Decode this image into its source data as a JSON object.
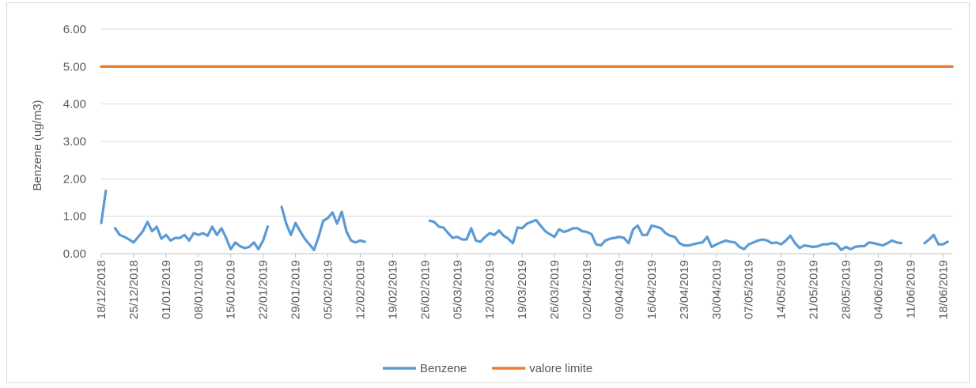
{
  "chart_data": {
    "type": "line",
    "ylabel": "Benzene (ug/m3)",
    "ylim": [
      0,
      6
    ],
    "yticks": [
      "0.00",
      "1.00",
      "2.00",
      "3.00",
      "4.00",
      "5.00",
      "6.00"
    ],
    "grid": "horizontal",
    "legend_position": "bottom",
    "x_start": "18/12/2018",
    "x_end": "20/06/2019",
    "xticks": [
      "18/12/2018",
      "25/12/2018",
      "01/01/2019",
      "08/01/2019",
      "15/01/2019",
      "22/01/2019",
      "29/01/2019",
      "05/02/2019",
      "12/02/2019",
      "19/02/2019",
      "26/02/2019",
      "05/03/2019",
      "12/03/2019",
      "19/03/2019",
      "26/03/2019",
      "02/04/2019",
      "09/04/2019",
      "16/04/2019",
      "23/04/2019",
      "30/04/2019",
      "07/05/2019",
      "14/05/2019",
      "21/05/2019",
      "28/05/2019",
      "04/06/2019",
      "11/06/2019",
      "18/06/2019"
    ],
    "series": [
      {
        "name": "Benzene",
        "color": "#5b9bd5",
        "segments": [
          [
            [
              "18/12/2018",
              0.82
            ],
            [
              "19/12/2018",
              1.68
            ]
          ],
          [
            [
              "21/12/2018",
              0.68
            ],
            [
              "22/12/2018",
              0.5
            ],
            [
              "23/12/2018",
              0.45
            ],
            [
              "24/12/2018",
              0.38
            ],
            [
              "25/12/2018",
              0.3
            ],
            [
              "26/12/2018",
              0.45
            ],
            [
              "27/12/2018",
              0.6
            ],
            [
              "28/12/2018",
              0.85
            ],
            [
              "29/12/2018",
              0.6
            ],
            [
              "30/12/2018",
              0.72
            ],
            [
              "31/12/2018",
              0.4
            ],
            [
              "01/01/2019",
              0.5
            ],
            [
              "02/01/2019",
              0.35
            ],
            [
              "03/01/2019",
              0.42
            ],
            [
              "04/01/2019",
              0.42
            ],
            [
              "05/01/2019",
              0.5
            ],
            [
              "06/01/2019",
              0.35
            ],
            [
              "07/01/2019",
              0.55
            ],
            [
              "08/01/2019",
              0.5
            ],
            [
              "09/01/2019",
              0.55
            ],
            [
              "10/01/2019",
              0.48
            ],
            [
              "11/01/2019",
              0.72
            ],
            [
              "12/01/2019",
              0.5
            ],
            [
              "13/01/2019",
              0.68
            ],
            [
              "14/01/2019",
              0.42
            ],
            [
              "15/01/2019",
              0.12
            ],
            [
              "16/01/2019",
              0.3
            ],
            [
              "17/01/2019",
              0.2
            ],
            [
              "18/01/2019",
              0.15
            ],
            [
              "19/01/2019",
              0.18
            ],
            [
              "20/01/2019",
              0.3
            ],
            [
              "21/01/2019",
              0.12
            ],
            [
              "22/01/2019",
              0.35
            ],
            [
              "23/01/2019",
              0.72
            ]
          ],
          [
            [
              "26/01/2019",
              1.25
            ],
            [
              "27/01/2019",
              0.8
            ],
            [
              "28/01/2019",
              0.5
            ],
            [
              "29/01/2019",
              0.82
            ],
            [
              "30/01/2019",
              0.6
            ],
            [
              "31/01/2019",
              0.4
            ],
            [
              "01/02/2019",
              0.25
            ],
            [
              "02/02/2019",
              0.1
            ],
            [
              "03/02/2019",
              0.45
            ],
            [
              "04/02/2019",
              0.88
            ],
            [
              "05/02/2019",
              0.95
            ],
            [
              "06/02/2019",
              1.1
            ],
            [
              "07/02/2019",
              0.8
            ],
            [
              "08/02/2019",
              1.12
            ],
            [
              "09/02/2019",
              0.6
            ],
            [
              "10/02/2019",
              0.35
            ],
            [
              "11/02/2019",
              0.3
            ],
            [
              "12/02/2019",
              0.35
            ],
            [
              "13/02/2019",
              0.32
            ]
          ],
          [
            [
              "27/02/2019",
              0.88
            ],
            [
              "28/02/2019",
              0.85
            ],
            [
              "01/03/2019",
              0.72
            ],
            [
              "02/03/2019",
              0.7
            ],
            [
              "03/03/2019",
              0.55
            ],
            [
              "04/03/2019",
              0.42
            ],
            [
              "05/03/2019",
              0.45
            ],
            [
              "06/03/2019",
              0.38
            ],
            [
              "07/03/2019",
              0.38
            ],
            [
              "08/03/2019",
              0.68
            ],
            [
              "09/03/2019",
              0.35
            ],
            [
              "10/03/2019",
              0.32
            ],
            [
              "11/03/2019",
              0.45
            ],
            [
              "12/03/2019",
              0.55
            ],
            [
              "13/03/2019",
              0.5
            ],
            [
              "14/03/2019",
              0.62
            ],
            [
              "15/03/2019",
              0.48
            ],
            [
              "16/03/2019",
              0.4
            ],
            [
              "17/03/2019",
              0.28
            ],
            [
              "18/03/2019",
              0.7
            ],
            [
              "19/03/2019",
              0.68
            ],
            [
              "20/03/2019",
              0.8
            ],
            [
              "21/03/2019",
              0.85
            ],
            [
              "22/03/2019",
              0.9
            ],
            [
              "23/03/2019",
              0.75
            ],
            [
              "24/03/2019",
              0.6
            ],
            [
              "25/03/2019",
              0.52
            ],
            [
              "26/03/2019",
              0.45
            ],
            [
              "27/03/2019",
              0.65
            ],
            [
              "28/03/2019",
              0.58
            ],
            [
              "29/03/2019",
              0.62
            ],
            [
              "30/03/2019",
              0.68
            ],
            [
              "31/03/2019",
              0.68
            ],
            [
              "01/04/2019",
              0.6
            ],
            [
              "02/04/2019",
              0.58
            ],
            [
              "03/04/2019",
              0.52
            ],
            [
              "04/04/2019",
              0.25
            ],
            [
              "05/04/2019",
              0.22
            ],
            [
              "06/04/2019",
              0.35
            ],
            [
              "07/04/2019",
              0.4
            ],
            [
              "08/04/2019",
              0.42
            ],
            [
              "09/04/2019",
              0.45
            ],
            [
              "10/04/2019",
              0.42
            ],
            [
              "11/04/2019",
              0.28
            ],
            [
              "12/04/2019",
              0.65
            ],
            [
              "13/04/2019",
              0.75
            ],
            [
              "14/04/2019",
              0.5
            ],
            [
              "15/04/2019",
              0.5
            ],
            [
              "16/04/2019",
              0.75
            ],
            [
              "17/04/2019",
              0.72
            ],
            [
              "18/04/2019",
              0.68
            ],
            [
              "19/04/2019",
              0.55
            ],
            [
              "20/04/2019",
              0.48
            ],
            [
              "21/04/2019",
              0.45
            ],
            [
              "22/04/2019",
              0.28
            ],
            [
              "23/04/2019",
              0.22
            ],
            [
              "24/04/2019",
              0.22
            ],
            [
              "25/04/2019",
              0.25
            ],
            [
              "26/04/2019",
              0.28
            ],
            [
              "27/04/2019",
              0.3
            ],
            [
              "28/04/2019",
              0.45
            ],
            [
              "29/04/2019",
              0.18
            ],
            [
              "30/04/2019",
              0.25
            ],
            [
              "01/05/2019",
              0.3
            ],
            [
              "02/05/2019",
              0.35
            ],
            [
              "03/05/2019",
              0.32
            ],
            [
              "04/05/2019",
              0.3
            ],
            [
              "05/05/2019",
              0.18
            ],
            [
              "06/05/2019",
              0.12
            ],
            [
              "07/05/2019",
              0.25
            ],
            [
              "08/05/2019",
              0.3
            ],
            [
              "09/05/2019",
              0.35
            ],
            [
              "10/05/2019",
              0.38
            ],
            [
              "11/05/2019",
              0.35
            ],
            [
              "12/05/2019",
              0.28
            ],
            [
              "13/05/2019",
              0.3
            ],
            [
              "14/05/2019",
              0.25
            ],
            [
              "15/05/2019",
              0.35
            ],
            [
              "16/05/2019",
              0.48
            ],
            [
              "17/05/2019",
              0.28
            ],
            [
              "18/05/2019",
              0.15
            ],
            [
              "19/05/2019",
              0.22
            ],
            [
              "20/05/2019",
              0.2
            ],
            [
              "21/05/2019",
              0.18
            ],
            [
              "22/05/2019",
              0.2
            ],
            [
              "23/05/2019",
              0.25
            ],
            [
              "24/05/2019",
              0.25
            ],
            [
              "25/05/2019",
              0.28
            ],
            [
              "26/05/2019",
              0.25
            ],
            [
              "27/05/2019",
              0.1
            ],
            [
              "28/05/2019",
              0.18
            ],
            [
              "29/05/2019",
              0.12
            ],
            [
              "30/05/2019",
              0.18
            ],
            [
              "31/05/2019",
              0.2
            ],
            [
              "01/06/2019",
              0.2
            ],
            [
              "02/06/2019",
              0.3
            ],
            [
              "03/06/2019",
              0.28
            ],
            [
              "04/06/2019",
              0.25
            ],
            [
              "05/06/2019",
              0.22
            ],
            [
              "06/06/2019",
              0.28
            ],
            [
              "07/06/2019",
              0.35
            ],
            [
              "08/06/2019",
              0.3
            ],
            [
              "09/06/2019",
              0.28
            ]
          ],
          [
            [
              "14/06/2019",
              0.28
            ],
            [
              "15/06/2019",
              0.38
            ],
            [
              "16/06/2019",
              0.5
            ],
            [
              "17/06/2019",
              0.25
            ],
            [
              "18/06/2019",
              0.25
            ],
            [
              "19/06/2019",
              0.32
            ]
          ]
        ]
      },
      {
        "name": "valore limite",
        "color": "#ed7d31",
        "segments": [
          [
            [
              "18/12/2018",
              5.0
            ],
            [
              "20/06/2019",
              5.0
            ]
          ]
        ]
      }
    ]
  }
}
